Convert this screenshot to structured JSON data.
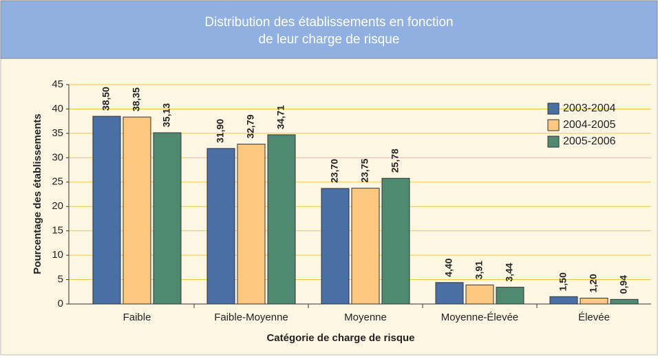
{
  "chart_data": {
    "type": "bar",
    "title": "Distribution des établissements en fonction",
    "title_line2": "de leur charge de risque",
    "xlabel": "Catégorie de charge de risque",
    "ylabel": "Pourcentage des établissements",
    "categories": [
      "Faible",
      "Faible-Moyenne",
      "Moyenne",
      "Moyenne-Élevée",
      "Élevée"
    ],
    "series": [
      {
        "name": "2003-2004",
        "color": "#4a6fa5",
        "values": [
          38.5,
          31.9,
          23.7,
          4.4,
          1.5
        ],
        "value_labels": [
          "38,50",
          "31,90",
          "23,70",
          "4,40",
          "1,50"
        ]
      },
      {
        "name": "2004-2005",
        "color": "#fcc77f",
        "values": [
          38.35,
          32.79,
          23.75,
          3.91,
          1.2
        ],
        "value_labels": [
          "38,35",
          "32,79",
          "23,75",
          "3,91",
          "1,20"
        ]
      },
      {
        "name": "2005-2006",
        "color": "#4f8a70",
        "values": [
          35.13,
          34.71,
          25.78,
          3.44,
          0.94
        ],
        "value_labels": [
          "35,13",
          "34,71",
          "25,78",
          "3,44",
          "0,94"
        ]
      }
    ],
    "ylim": [
      0,
      45
    ],
    "yticks": [
      0,
      5,
      10,
      15,
      20,
      25,
      30,
      35,
      40,
      45
    ],
    "grid": true,
    "legend": "upper right"
  }
}
